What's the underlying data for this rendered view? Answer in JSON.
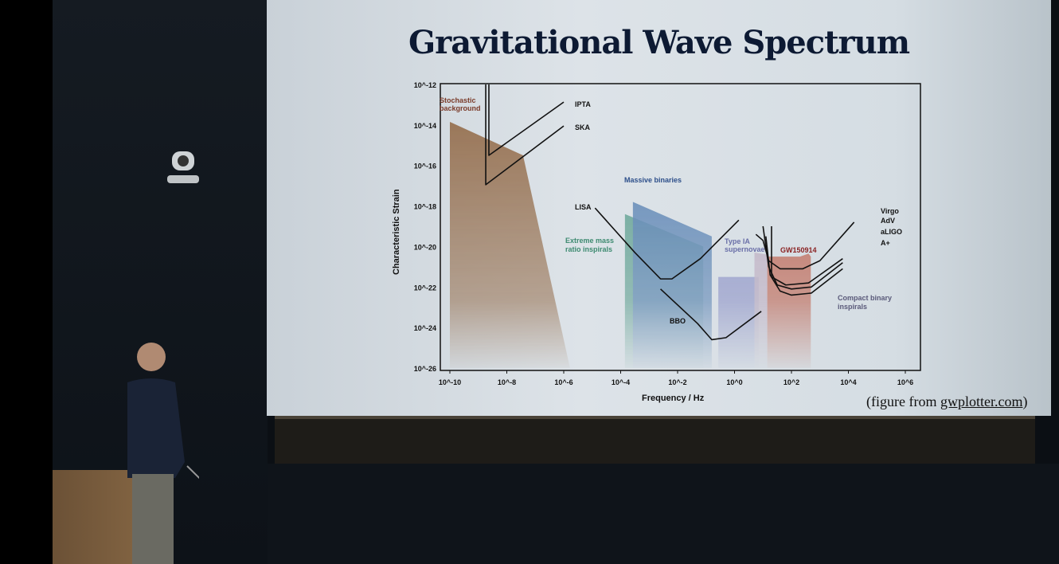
{
  "slide": {
    "title": "Gravitational Wave Spectrum",
    "credit_prefix": "(figure from ",
    "credit_link": "gwplotter.com",
    "credit_suffix": ")"
  },
  "chart_data": {
    "type": "area",
    "title": "Gravitational Wave Spectrum",
    "xlabel": "Frequency / Hz",
    "ylabel": "Characteristic Strain",
    "xscale": "log",
    "yscale": "log",
    "xlim_log10": [
      -10,
      6
    ],
    "ylim_log10": [
      -26,
      -12
    ],
    "x_ticks": [
      "10^-10",
      "10^-8",
      "10^-6",
      "10^-4",
      "10^-2",
      "10^0",
      "10^2",
      "10^4",
      "10^6"
    ],
    "x_ticks_log10": [
      -10,
      -8,
      -6,
      -4,
      -2,
      0,
      2,
      4,
      6
    ],
    "y_ticks": [
      "10^-12",
      "10^-14",
      "10^-16",
      "10^-18",
      "10^-20",
      "10^-22",
      "10^-24",
      "10^-26"
    ],
    "y_ticks_log10": [
      -12,
      -14,
      -16,
      -18,
      -20,
      -22,
      -24,
      -26
    ],
    "regions": [
      {
        "name": "Stochastic background",
        "color": "#8a5a33",
        "points_log10": [
          [
            -10,
            -13.85
          ],
          [
            -7.43,
            -15.5
          ],
          [
            -5.78,
            -26
          ],
          [
            -10,
            -26
          ]
        ]
      },
      {
        "name": "Extreme mass ratio inspirals",
        "color": "#3f8f7a",
        "points_log10": [
          [
            -3.85,
            -18.4
          ],
          [
            -1.1,
            -20.0
          ],
          [
            -1.1,
            -26
          ],
          [
            -3.85,
            -26
          ]
        ]
      },
      {
        "name": "Massive binaries",
        "color": "#3e6fa8",
        "points_log10": [
          [
            -3.57,
            -17.8
          ],
          [
            -0.8,
            -19.5
          ],
          [
            -0.8,
            -26
          ],
          [
            -3.57,
            -26
          ]
        ]
      },
      {
        "name": "Type IA supernovae",
        "color": "#7a7fc0",
        "points_log10": [
          [
            -0.57,
            -21.5
          ],
          [
            0.85,
            -21.5
          ],
          [
            0.85,
            -26
          ],
          [
            -0.57,
            -26
          ]
        ]
      },
      {
        "name": "",
        "color": "#b8a2b8",
        "points_log10": [
          [
            0.7,
            -20.3
          ],
          [
            1.15,
            -20.4
          ],
          [
            1.15,
            -26
          ],
          [
            0.7,
            -26
          ]
        ]
      },
      {
        "name": "GW150914",
        "color": "#b8442a",
        "points_log10": [
          [
            1.15,
            -20.5
          ],
          [
            2.3,
            -20.5
          ],
          [
            2.6,
            -20.35
          ],
          [
            2.68,
            -20.5
          ],
          [
            2.68,
            -26
          ],
          [
            1.15,
            -26
          ]
        ]
      }
    ],
    "curves": [
      {
        "name": "IPTA",
        "points_log10": [
          [
            -8.63,
            -12
          ],
          [
            -8.63,
            -15.5
          ],
          [
            -6,
            -12.87
          ]
        ]
      },
      {
        "name": "SKA",
        "points_log10": [
          [
            -8.74,
            -12
          ],
          [
            -8.74,
            -16.95
          ],
          [
            -6,
            -14.05
          ]
        ]
      },
      {
        "name": "LISA",
        "points_log10": [
          [
            -4.9,
            -18.1
          ],
          [
            -3.5,
            -20.3
          ],
          [
            -2.6,
            -21.6
          ],
          [
            -2.2,
            -21.6
          ],
          [
            -1.2,
            -20.6
          ],
          [
            0.15,
            -18.7
          ]
        ]
      },
      {
        "name": "BBO",
        "points_log10": [
          [
            -2.6,
            -22.1
          ],
          [
            -1.3,
            -23.8
          ],
          [
            -0.8,
            -24.6
          ],
          [
            -0.3,
            -24.5
          ],
          [
            0.94,
            -23.2
          ]
        ]
      },
      {
        "name": "Virgo AdV",
        "points_log10": [
          [
            0.75,
            -19.4
          ],
          [
            1.0,
            -19.7
          ],
          [
            1.2,
            -20.7
          ],
          [
            1.6,
            -21.1
          ],
          [
            2.4,
            -21.1
          ],
          [
            3.0,
            -20.7
          ],
          [
            4.2,
            -18.8
          ]
        ]
      },
      {
        "name": "aLIGO",
        "points_log10": [
          [
            1.0,
            -19.0
          ],
          [
            1.2,
            -21.0
          ],
          [
            1.5,
            -21.9
          ],
          [
            2.0,
            -22.1
          ],
          [
            2.7,
            -22.0
          ],
          [
            3.8,
            -20.8
          ]
        ]
      },
      {
        "name": "A+",
        "points_log10": [
          [
            1.1,
            -19.5
          ],
          [
            1.25,
            -21.4
          ],
          [
            1.6,
            -22.2
          ],
          [
            2.0,
            -22.4
          ],
          [
            2.7,
            -22.3
          ],
          [
            3.8,
            -21.1
          ]
        ]
      },
      {
        "name": "Virgo",
        "points_log10": [
          [
            1.3,
            -19.0
          ],
          [
            1.3,
            -21.5
          ],
          [
            1.8,
            -21.9
          ],
          [
            2.6,
            -21.8
          ],
          [
            3.8,
            -20.6
          ]
        ]
      }
    ],
    "labels": {
      "stochastic_1": "Stochastic",
      "stochastic_2": "background",
      "ipta": "IPTA",
      "ska": "SKA",
      "massive": "Massive binaries",
      "lisa": "LISA",
      "emri_1": "Extreme mass",
      "emri_2": "ratio inspirals",
      "typeia_1": "Type IA",
      "typeia_2": "supernovae",
      "gw": "GW150914",
      "bbo": "BBO",
      "virgo": "Virgo",
      "adv": "AdV",
      "aligo": "aLIGO",
      "aplus": "A+",
      "cbi_1": "Compact binary",
      "cbi_2": "inspirals"
    },
    "grid": false,
    "legend": "none"
  }
}
